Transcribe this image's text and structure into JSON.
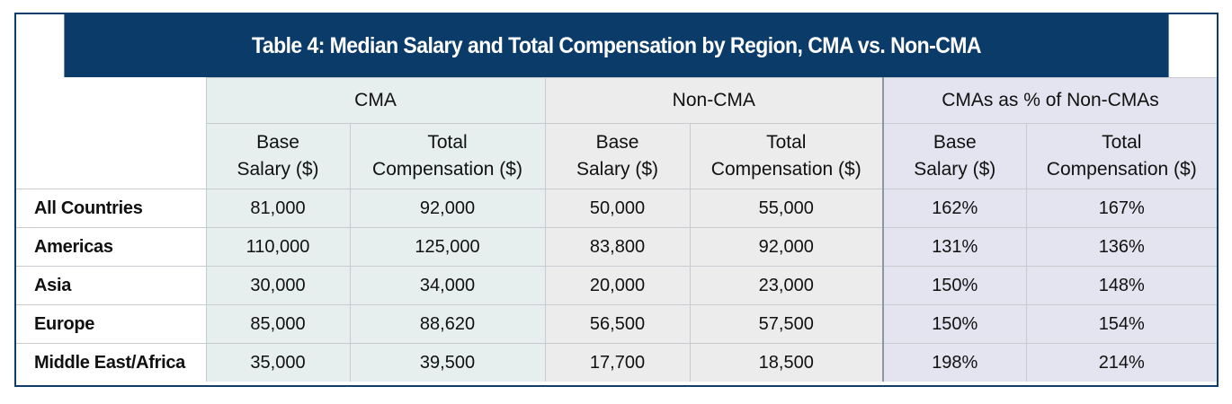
{
  "chart_data": {
    "type": "table",
    "title": "Table 4: Median Salary and Total Compensation by Region, CMA vs. Non-CMA",
    "column_groups": [
      "CMA",
      "Non-CMA",
      "CMAs as % of Non-CMAs"
    ],
    "sub_columns": [
      {
        "line1": "Base",
        "line2": "Salary ($)"
      },
      {
        "line1": "Total",
        "line2": "Compensation ($)"
      },
      {
        "line1": "Base",
        "line2": "Salary ($)"
      },
      {
        "line1": "Total",
        "line2": "Compensation ($)"
      },
      {
        "line1": "Base",
        "line2": "Salary ($)"
      },
      {
        "line1": "Total",
        "line2": "Compensation ($)"
      }
    ],
    "rows": [
      {
        "region": "All Countries",
        "values": [
          "81,000",
          "92,000",
          "50,000",
          "55,000",
          "162%",
          "167%"
        ]
      },
      {
        "region": "Americas",
        "values": [
          "110,000",
          "125,000",
          "83,800",
          "92,000",
          "131%",
          "136%"
        ]
      },
      {
        "region": "Asia",
        "values": [
          "30,000",
          "34,000",
          "20,000",
          "23,000",
          "150%",
          "148%"
        ]
      },
      {
        "region": "Europe",
        "values": [
          "85,000",
          "88,620",
          "56,500",
          "57,500",
          "150%",
          "154%"
        ]
      },
      {
        "region": "Middle East/Africa",
        "values": [
          "35,000",
          "39,500",
          "17,700",
          "18,500",
          "198%",
          "214%"
        ]
      }
    ]
  },
  "colors": {
    "title_background": "#0b3b68",
    "title_text": "#ffffff",
    "cma_background": "#e6efed",
    "non_cma_background": "#ececec",
    "pct_background": "#e3e4ef",
    "frame_border": "#0e3d6b"
  }
}
